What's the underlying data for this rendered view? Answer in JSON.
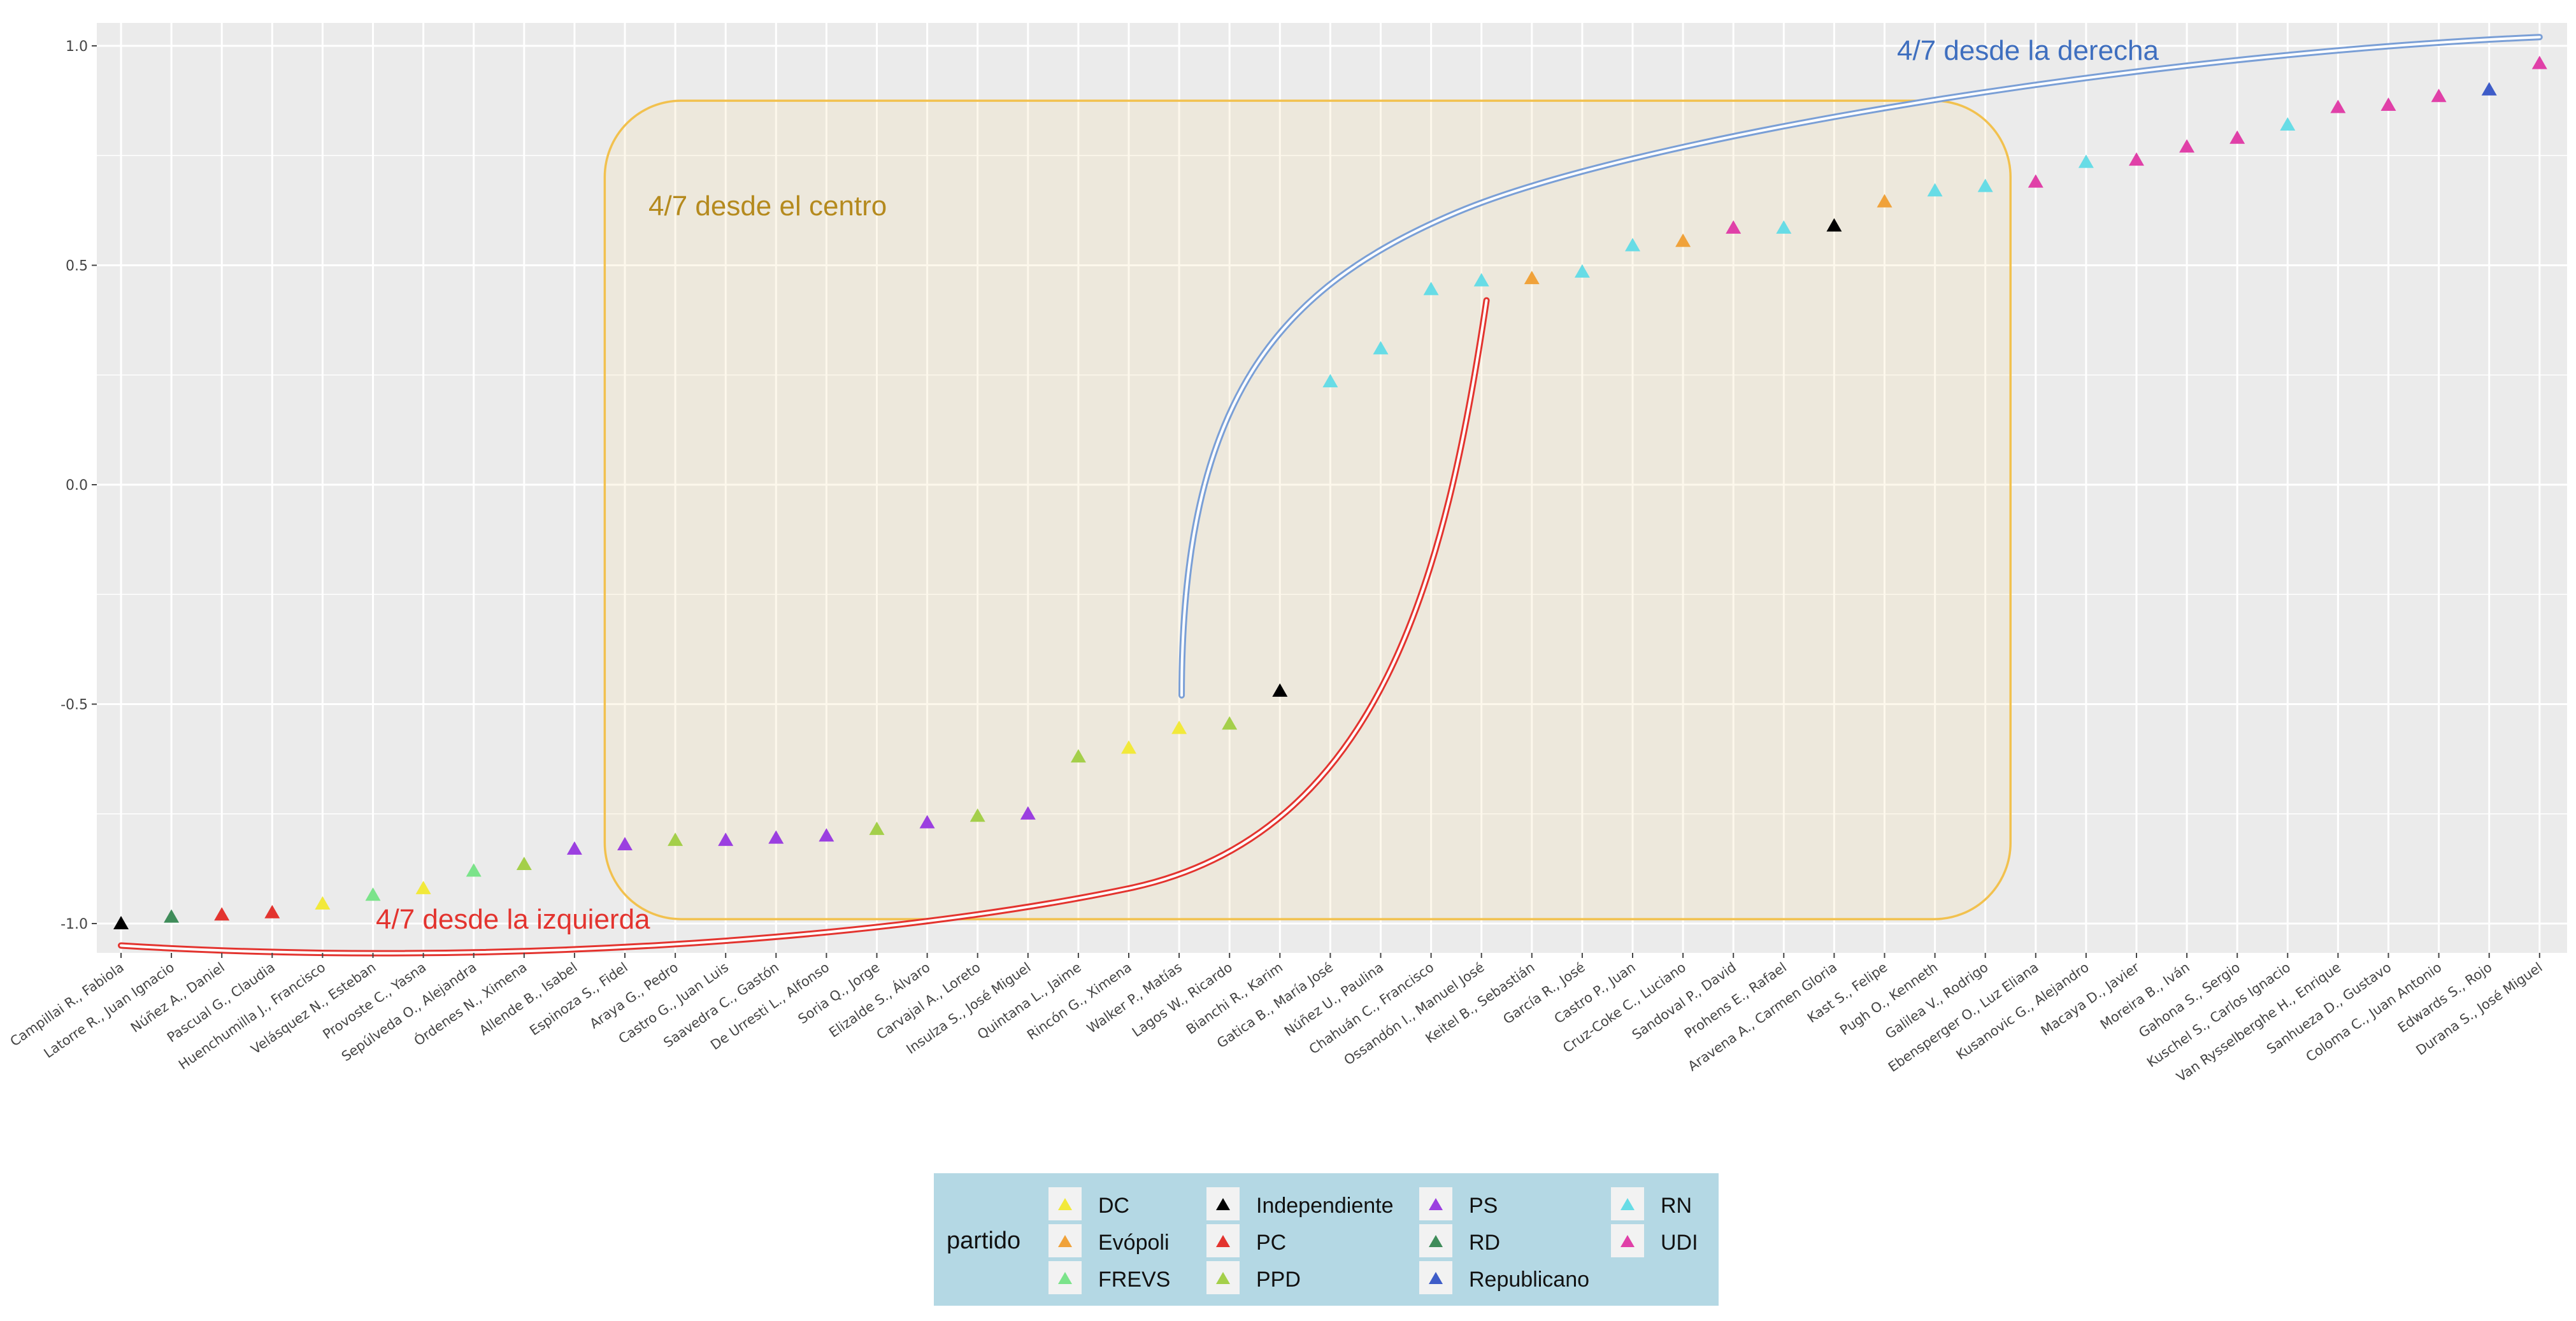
{
  "chart_data": {
    "type": "scatter",
    "marker": "triangle",
    "ylim": [
      -1.05,
      1.05
    ],
    "y_ticks": [
      "1.0",
      "0.5",
      "0.0",
      "-0.5",
      "-1.0"
    ],
    "y_tick_values": [
      1.0,
      0.5,
      0.0,
      -0.5,
      -1.0
    ],
    "grid": true,
    "background": "#EBEBEB",
    "points": [
      {
        "label": "Campillai R., Fabiola",
        "party": "Independiente",
        "y": -1.0
      },
      {
        "label": "Latorre R., Juan Ignacio",
        "party": "RD",
        "y": -0.985
      },
      {
        "label": "Núñez A., Daniel",
        "party": "PC",
        "y": -0.98
      },
      {
        "label": "Pascual G., Claudia",
        "party": "PC",
        "y": -0.975
      },
      {
        "label": "Huenchumilla J., Francisco",
        "party": "DC",
        "y": -0.955
      },
      {
        "label": "Velásquez N., Esteban",
        "party": "FREVS",
        "y": -0.935
      },
      {
        "label": "Provoste C., Yasna",
        "party": "DC",
        "y": -0.92
      },
      {
        "label": "Sepúlveda O., Alejandra",
        "party": "FREVS",
        "y": -0.88
      },
      {
        "label": "Órdenes N., Ximena",
        "party": "PPD",
        "y": -0.865
      },
      {
        "label": "Allende B., Isabel",
        "party": "PS",
        "y": -0.83
      },
      {
        "label": "Espinoza S., Fidel",
        "party": "PS",
        "y": -0.82
      },
      {
        "label": "Araya G., Pedro",
        "party": "PPD",
        "y": -0.81
      },
      {
        "label": "Castro G., Juan Luis",
        "party": "PS",
        "y": -0.81
      },
      {
        "label": "Saavedra C., Gastón",
        "party": "PS",
        "y": -0.805
      },
      {
        "label": "De Urresti L., Alfonso",
        "party": "PS",
        "y": -0.8
      },
      {
        "label": "Soria Q., Jorge",
        "party": "PPD",
        "y": -0.785
      },
      {
        "label": "Elizalde S., Álvaro",
        "party": "PS",
        "y": -0.77
      },
      {
        "label": "Carvajal A., Loreto",
        "party": "PPD",
        "y": -0.755
      },
      {
        "label": "Insulza S., José Miguel",
        "party": "PS",
        "y": -0.75
      },
      {
        "label": "Quintana L., Jaime",
        "party": "PPD",
        "y": -0.62
      },
      {
        "label": "Rincón G., Ximena",
        "party": "DC",
        "y": -0.6
      },
      {
        "label": "Walker P., Matías",
        "party": "DC",
        "y": -0.555
      },
      {
        "label": "Lagos W., Ricardo",
        "party": "PPD",
        "y": -0.545
      },
      {
        "label": "Bianchi R., Karim",
        "party": "Independiente",
        "y": -0.47
      },
      {
        "label": "Gatica B., María José",
        "party": "RN",
        "y": 0.235
      },
      {
        "label": "Núñez U., Paulina",
        "party": "RN",
        "y": 0.31
      },
      {
        "label": "Chahuán C., Francisco",
        "party": "RN",
        "y": 0.445
      },
      {
        "label": "Ossandón I., Manuel José",
        "party": "RN",
        "y": 0.465
      },
      {
        "label": "Keitel B., Sebastián",
        "party": "Evópoli",
        "y": 0.47
      },
      {
        "label": "García R., José",
        "party": "RN",
        "y": 0.485
      },
      {
        "label": "Castro P., Juan",
        "party": "RN",
        "y": 0.545
      },
      {
        "label": "Cruz-Coke C., Luciano",
        "party": "Evópoli",
        "y": 0.555
      },
      {
        "label": "Sandoval P., David",
        "party": "UDI",
        "y": 0.585
      },
      {
        "label": "Prohens E., Rafael",
        "party": "RN",
        "y": 0.585
      },
      {
        "label": "Aravena A., Carmen Gloria",
        "party": "Independiente",
        "y": 0.59
      },
      {
        "label": "Kast S., Felipe",
        "party": "Evópoli",
        "y": 0.645
      },
      {
        "label": "Pugh O., Kenneth",
        "party": "RN",
        "y": 0.67
      },
      {
        "label": "Galilea V., Rodrigo",
        "party": "RN",
        "y": 0.68
      },
      {
        "label": "Ebensperger O., Luz Eliana",
        "party": "UDI",
        "y": 0.69
      },
      {
        "label": "Kusanovic G., Alejandro",
        "party": "RN",
        "y": 0.735
      },
      {
        "label": "Macaya D., Javier",
        "party": "UDI",
        "y": 0.74
      },
      {
        "label": "Moreira B., Iván",
        "party": "UDI",
        "y": 0.77
      },
      {
        "label": "Gahona S., Sergio",
        "party": "UDI",
        "y": 0.79
      },
      {
        "label": "Kuschel S., Carlos Ignacio",
        "party": "RN",
        "y": 0.82
      },
      {
        "label": "Van Rysselberghe H., Enrique",
        "party": "UDI",
        "y": 0.86
      },
      {
        "label": "Sanhueza D., Gustavo",
        "party": "UDI",
        "y": 0.865
      },
      {
        "label": "Coloma C., Juan Antonio",
        "party": "UDI",
        "y": 0.885
      },
      {
        "label": "Edwards S., Rojo",
        "party": "Republicano",
        "y": 0.9
      },
      {
        "label": "Durana S., José Miguel",
        "party": "UDI",
        "y": 0.96
      }
    ],
    "legend": {
      "title": "partido",
      "placement": "bottom",
      "entries": [
        {
          "name": "DC",
          "color": "#F2E93A"
        },
        {
          "name": "Evópoli",
          "color": "#F0A23A"
        },
        {
          "name": "FREVS",
          "color": "#7BE38A"
        },
        {
          "name": "Independiente",
          "color": "#000000"
        },
        {
          "name": "PC",
          "color": "#E3342F"
        },
        {
          "name": "PPD",
          "color": "#A4CF4A"
        },
        {
          "name": "PS",
          "color": "#9B3FE0"
        },
        {
          "name": "RD",
          "color": "#3F8C5A"
        },
        {
          "name": "Republicano",
          "color": "#3E5CC8"
        },
        {
          "name": "RN",
          "color": "#67DCE6"
        },
        {
          "name": "UDI",
          "color": "#E040A8"
        }
      ]
    },
    "annotations": {
      "derecha": {
        "text": "4/7 desde la derecha",
        "color": "#3F6FBF"
      },
      "centro": {
        "text": "4/7 desde el centro",
        "color": "#B58A1E"
      },
      "izquierda": {
        "text": "4/7 desde la izquierda",
        "color": "#E3342F"
      }
    },
    "center_box": {
      "x_from_index": 9.6,
      "x_to_index": 37.5,
      "y_from": -0.99,
      "y_to": 0.875,
      "border_color": "#F2C14E"
    }
  }
}
